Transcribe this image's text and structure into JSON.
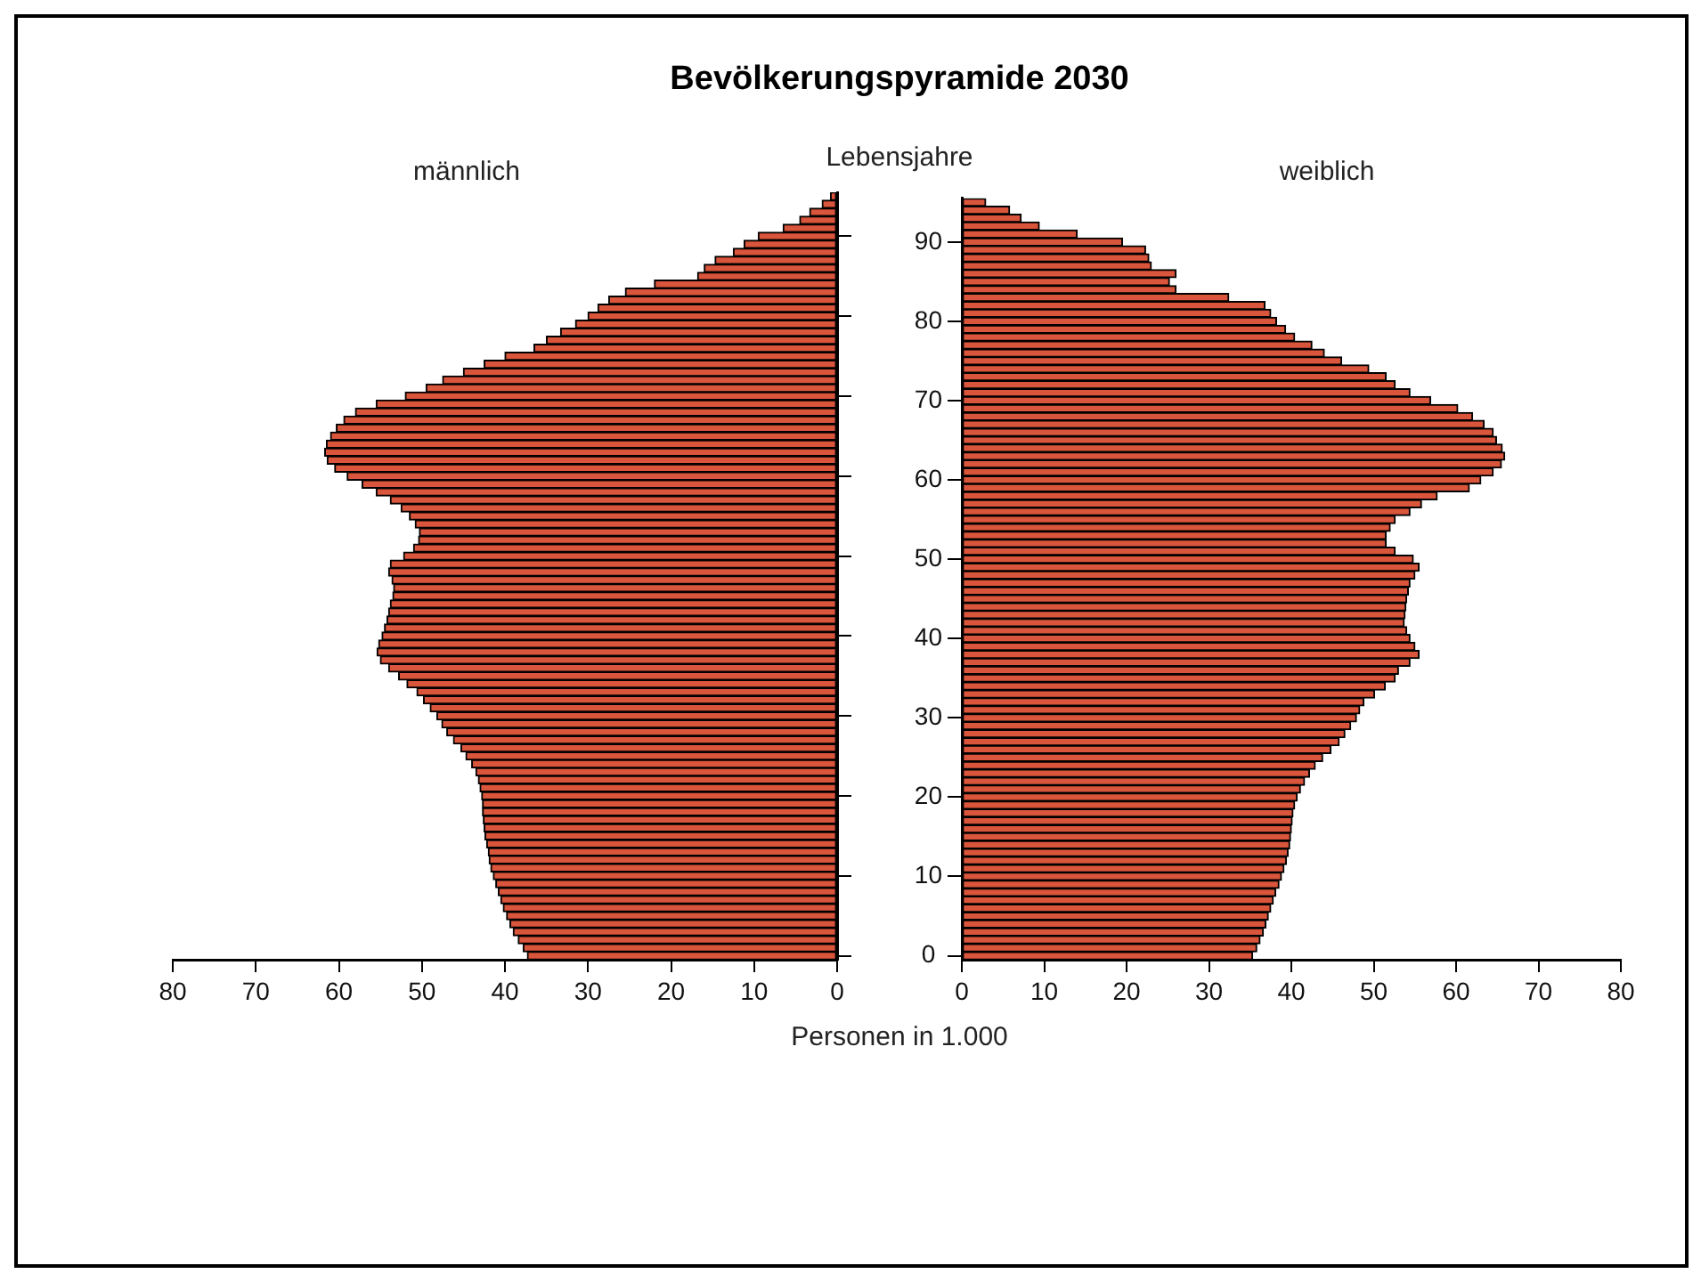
{
  "chart_data": [
    {
      "type": "bar",
      "orientation": "horizontal",
      "title": "Bevölkerungspyramide 2030",
      "subtitle": "männlich",
      "tick_labels": "x",
      "categories": [
        null,
        null,
        null,
        null,
        null,
        "90",
        null,
        null,
        null,
        null,
        null,
        null,
        null,
        null,
        null,
        "80",
        null,
        null,
        null,
        null,
        null,
        null,
        null,
        null,
        null,
        "70",
        null,
        null,
        null,
        null,
        null,
        null,
        null,
        null,
        null,
        "60",
        null,
        null,
        null,
        null,
        null,
        null,
        null,
        null,
        null,
        "50",
        null,
        null,
        null,
        null,
        null,
        null,
        null,
        null,
        null,
        "40",
        null,
        null,
        null,
        null,
        null,
        null,
        null,
        null,
        null,
        "30",
        null,
        null,
        null,
        null,
        null,
        null,
        null,
        null,
        null,
        "20",
        null,
        null,
        null,
        null,
        null,
        null,
        null,
        null,
        null,
        "10",
        null,
        null,
        null,
        null,
        null,
        null,
        null,
        null,
        null,
        "0"
      ],
      "series": [
        {
          "color": "#d9553b",
          "values": [
            0.8,
            1.8,
            3.3,
            4.5,
            6.5,
            9.5,
            11.2,
            12.5,
            14.7,
            16,
            16.8,
            22,
            25.5,
            27.5,
            28.8,
            30,
            31.5,
            33.3,
            35,
            36.5,
            40,
            42.5,
            45,
            47.5,
            49.5,
            52,
            55.5,
            58,
            59.4,
            60.3,
            61,
            61.5,
            61.7,
            61.4,
            60.5,
            59,
            57.2,
            55.5,
            53.8,
            52.5,
            51.5,
            50.8,
            50.3,
            50.4,
            51,
            52.2,
            53.8,
            54,
            53.6,
            53.4,
            53.5,
            53.8,
            54,
            54.2,
            54.5,
            54.8,
            55.2,
            55.4,
            55,
            54,
            52.8,
            51.8,
            50.6,
            49.8,
            49,
            48.2,
            47.6,
            47,
            46.2,
            45.3,
            44.7,
            44,
            43.5,
            43.2,
            43,
            42.8,
            42.7,
            42.7,
            42.6,
            42.5,
            42.4,
            42.2,
            42,
            41.9,
            41.7,
            41.4,
            41.1,
            40.8,
            40.5,
            40.2,
            39.8,
            39.4,
            39,
            38.4,
            37.8,
            37.3
          ]
        }
      ],
      "xlim": [
        80,
        0
      ],
      "xticks": [
        80,
        70,
        60,
        50,
        40,
        30,
        20,
        10,
        0
      ]
    },
    {
      "type": "bar",
      "orientation": "horizontal",
      "subtitle": "weiblich",
      "ylabel": "Lebensjahre",
      "xlabel": "Personen in 1.000",
      "categories": [
        null,
        null,
        null,
        null,
        null,
        "90",
        null,
        null,
        null,
        null,
        null,
        null,
        null,
        null,
        null,
        "80",
        null,
        null,
        null,
        null,
        null,
        null,
        null,
        null,
        null,
        "70",
        null,
        null,
        null,
        null,
        null,
        null,
        null,
        null,
        null,
        "60",
        null,
        null,
        null,
        null,
        null,
        null,
        null,
        null,
        null,
        "50",
        null,
        null,
        null,
        null,
        null,
        null,
        null,
        null,
        null,
        "40",
        null,
        null,
        null,
        null,
        null,
        null,
        null,
        null,
        null,
        "30",
        null,
        null,
        null,
        null,
        null,
        null,
        null,
        null,
        null,
        "20",
        null,
        null,
        null,
        null,
        null,
        null,
        null,
        null,
        null,
        "10",
        null,
        null,
        null,
        null,
        null,
        null,
        null,
        null,
        null,
        "0"
      ],
      "series": [
        {
          "color": "#d9553b",
          "values": [
            2.9,
            5.8,
            7.2,
            9.4,
            14,
            19.5,
            22.3,
            22.7,
            23,
            26,
            25.2,
            26,
            32.4,
            36.8,
            37.5,
            38.2,
            39.3,
            40.4,
            42.5,
            44,
            46.1,
            49.4,
            51.5,
            52.6,
            54.4,
            56.9,
            60.2,
            62,
            63.4,
            64.5,
            64.9,
            65.6,
            65.9,
            65.5,
            64.5,
            63,
            61.6,
            57.7,
            55.8,
            54.4,
            52.6,
            52,
            51.5,
            51.5,
            52.6,
            54.8,
            55.5,
            55,
            54.4,
            54.2,
            54,
            53.9,
            53.8,
            53.7,
            54,
            54.4,
            55,
            55.5,
            54.4,
            53,
            52.6,
            51.4,
            50.1,
            48.8,
            48.3,
            47.9,
            47.2,
            46.5,
            45.8,
            44.8,
            43.8,
            42.9,
            42.2,
            41.6,
            41.1,
            40.7,
            40.4,
            40.2,
            40.1,
            40,
            39.9,
            39.8,
            39.6,
            39.4,
            39.1,
            38.8,
            38.5,
            38.1,
            37.8,
            37.5,
            37.2,
            36.9,
            36.6,
            36.2,
            35.8,
            35.3
          ]
        }
      ],
      "xlim": [
        0,
        80
      ],
      "xticks": [
        0,
        10,
        20,
        30,
        40,
        50,
        60,
        70,
        80
      ]
    }
  ]
}
